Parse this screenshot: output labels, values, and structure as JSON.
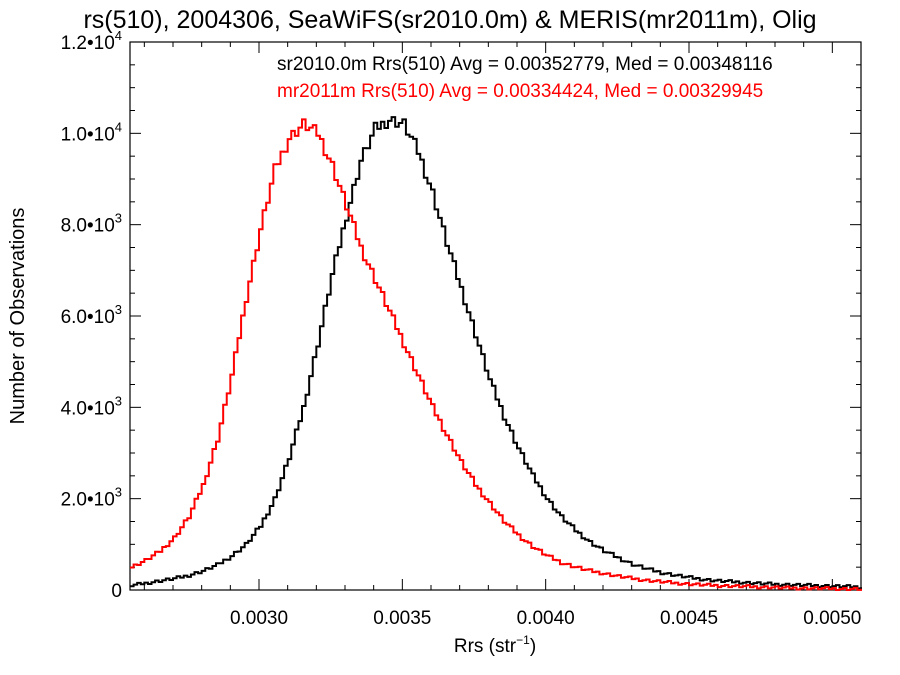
{
  "chart_data": {
    "type": "line",
    "title": "rs(510), 2004306, SeaWiFS(sr2010.0m) & MERIS(mr2011m), Olig",
    "xlabel": "Rrs (str",
    "xlabel_sup": "−1",
    "xlabel_suffix": ")",
    "ylabel": "Number of Observations",
    "xlim": [
      0.00255,
      0.0051
    ],
    "ylim": [
      0,
      12000
    ],
    "xticks": [
      {
        "value": 0.003,
        "label": "0.0030"
      },
      {
        "value": 0.0035,
        "label": "0.0035"
      },
      {
        "value": 0.004,
        "label": "0.0040"
      },
      {
        "value": 0.0045,
        "label": "0.0045"
      },
      {
        "value": 0.005,
        "label": "0.0050"
      }
    ],
    "yticks": [
      {
        "value": 0,
        "mant": "0",
        "exp": ""
      },
      {
        "value": 2000,
        "mant": "2.0•10",
        "exp": "3"
      },
      {
        "value": 4000,
        "mant": "4.0•10",
        "exp": "3"
      },
      {
        "value": 6000,
        "mant": "6.0•10",
        "exp": "3"
      },
      {
        "value": 8000,
        "mant": "8.0•10",
        "exp": "3"
      },
      {
        "value": 10000,
        "mant": "1.0•10",
        "exp": "4"
      },
      {
        "value": 12000,
        "mant": "1.2•10",
        "exp": "4"
      }
    ],
    "grid": false,
    "series": [
      {
        "name": "sr2010.0m Rrs(510) Avg = 0.00352779, Med = 0.00348116",
        "color": "#000000",
        "x": [
          0.00255,
          0.0026,
          0.00265,
          0.0027,
          0.00275,
          0.0028,
          0.00285,
          0.0029,
          0.00295,
          0.003,
          0.00305,
          0.0031,
          0.00315,
          0.0032,
          0.00325,
          0.0033,
          0.00335,
          0.0034,
          0.00345,
          0.0035,
          0.00355,
          0.0036,
          0.00365,
          0.0037,
          0.00375,
          0.0038,
          0.00385,
          0.0039,
          0.00395,
          0.004,
          0.00405,
          0.0041,
          0.00415,
          0.0042,
          0.00425,
          0.0043,
          0.00435,
          0.0044,
          0.00445,
          0.0045,
          0.00455,
          0.0046,
          0.00465,
          0.0047,
          0.00475,
          0.0048,
          0.00485,
          0.0049,
          0.00495,
          0.005,
          0.00505,
          0.0051
        ],
        "y": [
          100,
          150,
          200,
          250,
          320,
          420,
          550,
          750,
          1000,
          1400,
          2000,
          2900,
          4000,
          5400,
          6900,
          8200,
          9400,
          10100,
          10300,
          10200,
          9600,
          8700,
          7600,
          6600,
          5600,
          4600,
          3800,
          3100,
          2500,
          2000,
          1600,
          1300,
          1050,
          850,
          700,
          560,
          460,
          380,
          320,
          270,
          230,
          200,
          180,
          160,
          140,
          125,
          115,
          105,
          95,
          85,
          75,
          65
        ]
      },
      {
        "name": "mr2011m Rrs(510) Avg = 0.00334424, Med = 0.00329945",
        "color": "#ff0000",
        "x": [
          0.00255,
          0.0026,
          0.00265,
          0.0027,
          0.00275,
          0.0028,
          0.00285,
          0.0029,
          0.00295,
          0.003,
          0.00305,
          0.0031,
          0.00315,
          0.0032,
          0.00325,
          0.0033,
          0.00335,
          0.0034,
          0.00345,
          0.0035,
          0.00355,
          0.0036,
          0.00365,
          0.0037,
          0.00375,
          0.0038,
          0.00385,
          0.0039,
          0.00395,
          0.004,
          0.00405,
          0.0041,
          0.00415,
          0.0042,
          0.00425,
          0.0043,
          0.00435,
          0.0044,
          0.00445,
          0.0045,
          0.00455,
          0.0046,
          0.00465,
          0.0047,
          0.00475,
          0.0048,
          0.00485,
          0.0049,
          0.00495,
          0.005,
          0.00505,
          0.0051
        ],
        "y": [
          500,
          650,
          850,
          1150,
          1600,
          2300,
          3300,
          4700,
          6400,
          7900,
          9200,
          9900,
          10200,
          10000,
          9300,
          8400,
          7500,
          6800,
          6100,
          5400,
          4700,
          4000,
          3400,
          2800,
          2300,
          1900,
          1500,
          1200,
          950,
          750,
          600,
          500,
          420,
          360,
          300,
          250,
          210,
          180,
          150,
          130,
          110,
          95,
          85,
          75,
          65,
          55,
          45,
          40,
          35,
          30,
          25,
          20
        ]
      }
    ]
  }
}
